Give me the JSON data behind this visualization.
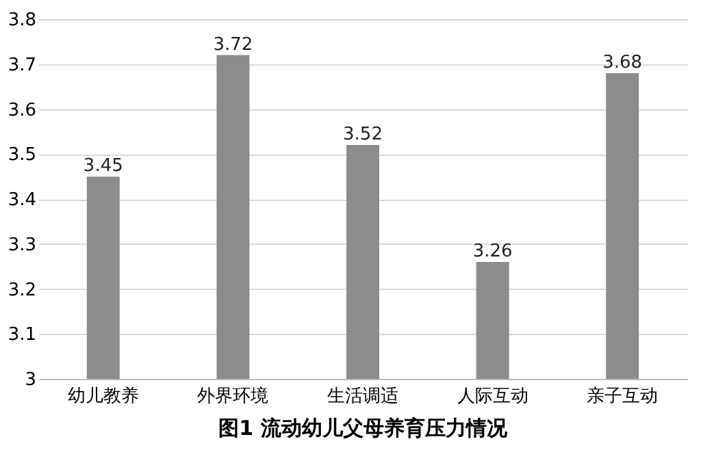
{
  "chart_data": {
    "type": "bar",
    "title": "图1 流动幼儿父母养育压力情况",
    "categories": [
      "幼儿教养",
      "外界环境",
      "生活调适",
      "人际互动",
      "亲子互动"
    ],
    "values": [
      3.45,
      3.72,
      3.52,
      3.26,
      3.68
    ],
    "color": "#8c8c8c",
    "ylim": [
      3,
      3.8
    ],
    "yticks": [
      3,
      3.1,
      3.2,
      3.3,
      3.4,
      3.5,
      3.6,
      3.7,
      3.8
    ],
    "grid": "y",
    "data_labels": true
  }
}
